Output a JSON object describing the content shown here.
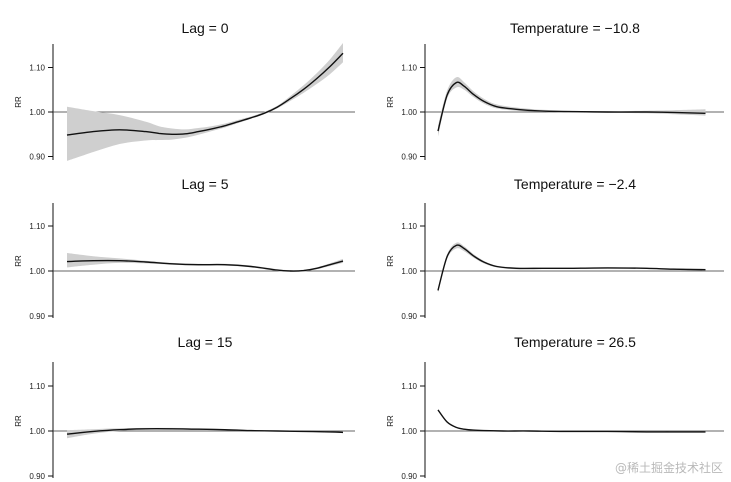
{
  "chart_data": [
    {
      "type": "line",
      "title": "Lag = 0",
      "ylabel": "RR",
      "ylim": [
        0.9,
        1.15
      ],
      "yticks": [
        "0.90",
        "1.00",
        "1.10"
      ],
      "xlim": [
        -12,
        30
      ],
      "reference": 1.0,
      "series": [
        {
          "name": "RR",
          "x": [
            -12,
            -8,
            -4,
            0,
            2,
            4,
            6,
            8,
            10,
            12,
            14,
            16,
            18,
            20,
            22,
            24,
            26,
            28,
            30
          ],
          "values": [
            0.948,
            0.956,
            0.96,
            0.956,
            0.952,
            0.95,
            0.951,
            0.956,
            0.962,
            0.969,
            0.978,
            0.987,
            0.997,
            1.011,
            1.03,
            1.051,
            1.075,
            1.102,
            1.132
          ],
          "lower": [
            0.89,
            0.91,
            0.928,
            0.936,
            0.937,
            0.938,
            0.942,
            0.949,
            0.957,
            0.965,
            0.975,
            0.985,
            0.995,
            1.008,
            1.025,
            1.043,
            1.063,
            1.085,
            1.112
          ],
          "upper": [
            1.012,
            1.002,
            0.993,
            0.978,
            0.968,
            0.963,
            0.961,
            0.964,
            0.968,
            0.974,
            0.982,
            0.99,
            1.0,
            1.014,
            1.036,
            1.06,
            1.087,
            1.118,
            1.155
          ]
        }
      ]
    },
    {
      "type": "line",
      "title": "Temperature = −10.8",
      "ylabel": "RR",
      "ylim": [
        0.9,
        1.15
      ],
      "yticks": [
        "0.90",
        "1.00",
        "1.10"
      ],
      "xlim": [
        0,
        21
      ],
      "reference": 1.0,
      "series": [
        {
          "name": "RR",
          "x": [
            0,
            0.7,
            1.4,
            2,
            2.7,
            3.5,
            4.5,
            6,
            8,
            10,
            13,
            16,
            18,
            20.5
          ],
          "values": [
            0.957,
            1.038,
            1.066,
            1.058,
            1.04,
            1.024,
            1.012,
            1.006,
            1.002,
            1.001,
            1.0,
            1.0,
            0.999,
            0.997
          ],
          "lower": [
            0.945,
            1.03,
            1.055,
            1.05,
            1.034,
            1.019,
            1.008,
            1.003,
            1.0,
            0.999,
            0.998,
            0.997,
            0.995,
            0.992
          ],
          "upper": [
            0.969,
            1.048,
            1.078,
            1.067,
            1.047,
            1.03,
            1.017,
            1.01,
            1.005,
            1.003,
            1.002,
            1.003,
            1.004,
            1.006
          ]
        }
      ]
    },
    {
      "type": "line",
      "title": "Lag = 5",
      "ylabel": "RR",
      "ylim": [
        0.9,
        1.15
      ],
      "yticks": [
        "0.90",
        "1.00",
        "1.10"
      ],
      "xlim": [
        -12,
        30
      ],
      "reference": 1.0,
      "series": [
        {
          "name": "RR",
          "x": [
            -12,
            -8,
            -4,
            0,
            4,
            8,
            12,
            16,
            20,
            22,
            24,
            26,
            28,
            30
          ],
          "values": [
            1.021,
            1.023,
            1.023,
            1.02,
            1.016,
            1.014,
            1.014,
            1.01,
            1.002,
            1.0,
            1.001,
            1.006,
            1.014,
            1.022
          ],
          "lower": [
            1.008,
            1.014,
            1.018,
            1.017,
            1.014,
            1.012,
            1.012,
            1.008,
            1.0,
            0.998,
            0.999,
            1.004,
            1.011,
            1.018
          ],
          "upper": [
            1.04,
            1.033,
            1.028,
            1.023,
            1.018,
            1.016,
            1.016,
            1.012,
            1.004,
            1.002,
            1.003,
            1.008,
            1.017,
            1.027
          ]
        }
      ]
    },
    {
      "type": "line",
      "title": "Temperature = −2.4",
      "ylabel": "RR",
      "ylim": [
        0.9,
        1.15
      ],
      "yticks": [
        "0.90",
        "1.00",
        "1.10"
      ],
      "xlim": [
        0,
        21
      ],
      "reference": 1.0,
      "series": [
        {
          "name": "RR",
          "x": [
            0,
            0.7,
            1.4,
            2,
            2.7,
            3.5,
            4.5,
            6,
            8,
            10,
            13,
            16,
            18,
            20.5
          ],
          "values": [
            0.957,
            1.032,
            1.057,
            1.05,
            1.034,
            1.02,
            1.01,
            1.006,
            1.006,
            1.006,
            1.007,
            1.006,
            1.004,
            1.003
          ],
          "lower": [
            0.952,
            1.027,
            1.05,
            1.044,
            1.03,
            1.017,
            1.008,
            1.004,
            1.005,
            1.005,
            1.006,
            1.005,
            1.003,
            1.001
          ],
          "upper": [
            0.962,
            1.037,
            1.063,
            1.055,
            1.038,
            1.023,
            1.012,
            1.008,
            1.007,
            1.007,
            1.008,
            1.007,
            1.006,
            1.005
          ]
        }
      ]
    },
    {
      "type": "line",
      "title": "Lag = 15",
      "ylabel": "RR",
      "ylim": [
        0.9,
        1.15
      ],
      "yticks": [
        "0.90",
        "1.00",
        "1.10"
      ],
      "xlim": [
        -12,
        30
      ],
      "reference": 1.0,
      "series": [
        {
          "name": "RR",
          "x": [
            -12,
            -8,
            -4,
            0,
            4,
            8,
            12,
            16,
            20,
            24,
            28,
            30
          ],
          "values": [
            0.993,
            0.999,
            1.003,
            1.005,
            1.005,
            1.004,
            1.003,
            1.001,
            1.0,
            0.999,
            0.998,
            0.997
          ],
          "lower": [
            0.984,
            0.994,
            1.0,
            1.003,
            1.003,
            1.003,
            1.002,
            1.0,
            0.999,
            0.998,
            0.997,
            0.996
          ],
          "upper": [
            1.002,
            1.004,
            1.006,
            1.007,
            1.007,
            1.006,
            1.004,
            1.002,
            1.001,
            1.0,
            0.999,
            0.998
          ]
        }
      ]
    },
    {
      "type": "line",
      "title": "Temperature = 26.5",
      "ylabel": "RR",
      "ylim": [
        0.9,
        1.15
      ],
      "yticks": [
        "0.90",
        "1.00",
        "1.10"
      ],
      "xlim": [
        0,
        21
      ],
      "reference": 1.0,
      "series": [
        {
          "name": "RR",
          "x": [
            0,
            0.7,
            1.4,
            2,
            2.7,
            3.5,
            5,
            7,
            10,
            13,
            16,
            20.5
          ],
          "values": [
            1.047,
            1.02,
            1.008,
            1.004,
            1.002,
            1.001,
            1.0,
            1.0,
            0.999,
            0.999,
            0.998,
            0.998
          ],
          "lower": [
            1.045,
            1.018,
            1.007,
            1.003,
            1.001,
            1.0,
            0.999,
            0.999,
            0.998,
            0.998,
            0.997,
            0.997
          ],
          "upper": [
            1.049,
            1.022,
            1.009,
            1.005,
            1.003,
            1.002,
            1.001,
            1.001,
            1.0,
            1.0,
            0.999,
            0.999
          ]
        }
      ]
    }
  ],
  "colors": {
    "line": "#111111",
    "band": "#cfcfcf",
    "axis": "#111111",
    "reference": "#333333",
    "watermark": "#b9b9b9"
  },
  "watermark": "@稀土掘金技术社区"
}
